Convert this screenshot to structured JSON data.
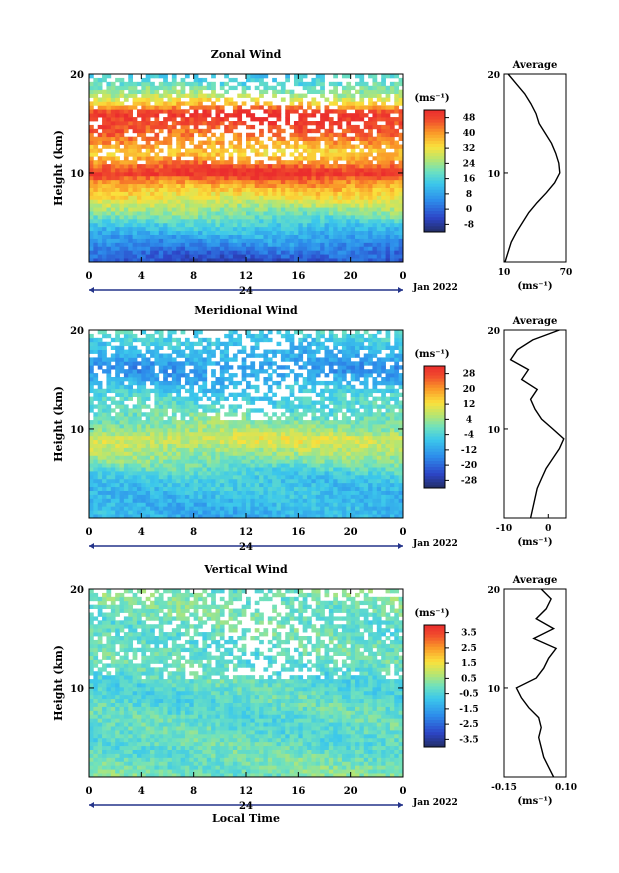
{
  "figure": {
    "date_label": "Jan 2022",
    "xlabel": "Local Time",
    "ylabel": "Height (km)",
    "day_label": "24",
    "avg_title": "Average",
    "unit_label": "(ms⁻¹)",
    "x_ticks": [
      "0",
      "4",
      "8",
      "12",
      "16",
      "20",
      "0"
    ],
    "y_ticks": [
      "10",
      "20"
    ]
  },
  "chart_data": [
    {
      "type": "heatmap",
      "title": "Zonal Wind",
      "xlabel": "",
      "ylabel": "Height (km)",
      "xlim": [
        0,
        24
      ],
      "ylim": [
        1,
        20
      ],
      "colorbar": {
        "unit": "(ms⁻¹)",
        "ticks": [
          48,
          40,
          32,
          24,
          16,
          8,
          0,
          -8
        ],
        "range": [
          -12,
          52
        ]
      },
      "field_profile": {
        "height_km": [
          1,
          3,
          5,
          7,
          9,
          10,
          12,
          14,
          16,
          17,
          18,
          19,
          20
        ],
        "value": [
          -4,
          6,
          16,
          28,
          40,
          52,
          34,
          44,
          52,
          36,
          24,
          18,
          14
        ]
      },
      "average": {
        "title": "Average",
        "xlabel": "(ms⁻¹)",
        "x_ticks": [
          "10",
          "70"
        ],
        "xlim": [
          10,
          70
        ],
        "height_km": [
          1,
          2,
          3,
          4,
          5,
          6,
          7,
          8,
          9,
          10,
          11,
          12,
          13,
          14,
          15,
          16,
          17,
          18,
          19,
          20
        ],
        "values": [
          11,
          14,
          17,
          22,
          28,
          34,
          42,
          51,
          59,
          64,
          63,
          60,
          56,
          50,
          44,
          41,
          36,
          30,
          22,
          14
        ]
      }
    },
    {
      "type": "heatmap",
      "title": "Meridional Wind",
      "xlabel": "",
      "ylabel": "Height (km)",
      "xlim": [
        0,
        24
      ],
      "ylim": [
        1,
        20
      ],
      "colorbar": {
        "unit": "(ms⁻¹)",
        "ticks": [
          28,
          20,
          12,
          4,
          -4,
          -12,
          -20,
          -28
        ],
        "range": [
          -32,
          32
        ]
      },
      "field_profile": {
        "height_km": [
          1,
          3,
          5,
          7,
          9,
          10,
          12,
          14,
          16,
          18,
          20
        ],
        "value": [
          -10,
          -8,
          -6,
          2,
          10,
          4,
          -2,
          -6,
          -14,
          -8,
          -4
        ]
      },
      "average": {
        "title": "Average",
        "xlabel": "(ms⁻¹)",
        "x_ticks": [
          "-10",
          "0"
        ],
        "xlim": [
          -10,
          4
        ],
        "height_km": [
          1,
          2,
          3,
          4,
          5,
          6,
          7,
          8,
          9,
          10,
          11,
          12,
          13,
          14,
          15,
          16,
          17,
          18,
          19,
          20
        ],
        "values": [
          -4,
          -3.5,
          -3,
          -2.5,
          -1.5,
          -0.5,
          1,
          2.5,
          3.5,
          1,
          -1.5,
          -3,
          -4,
          -2.5,
          -6,
          -4.5,
          -8.5,
          -7,
          -3.5,
          2.5
        ]
      }
    },
    {
      "type": "heatmap",
      "title": "Vertical Wind",
      "xlabel": "Local Time",
      "ylabel": "Height (km)",
      "xlim": [
        0,
        24
      ],
      "ylim": [
        1,
        20
      ],
      "colorbar": {
        "unit": "(ms⁻¹)",
        "ticks": [
          3.5,
          2.5,
          1.5,
          0.5,
          -0.5,
          -1.5,
          -2.5,
          -3.5
        ],
        "range": [
          -4,
          4
        ]
      },
      "field_profile": {
        "height_km": [
          1,
          5,
          10,
          15,
          20
        ],
        "value": [
          0.1,
          -0.2,
          -0.3,
          -0.1,
          0.1
        ]
      },
      "average": {
        "title": "Average",
        "xlabel": "(ms⁻¹)",
        "x_ticks": [
          "-0.15",
          "0.10"
        ],
        "xlim": [
          -0.15,
          0.1
        ],
        "height_km": [
          1,
          2,
          3,
          4,
          5,
          6,
          7,
          8,
          9,
          10,
          11,
          12,
          13,
          14,
          15,
          16,
          17,
          18,
          19,
          20
        ],
        "values": [
          0.05,
          0.03,
          0.01,
          0.0,
          -0.01,
          0.0,
          -0.01,
          -0.05,
          -0.08,
          -0.1,
          -0.02,
          0.01,
          0.03,
          0.06,
          -0.03,
          0.05,
          -0.02,
          0.02,
          0.04,
          0.0
        ]
      }
    }
  ]
}
